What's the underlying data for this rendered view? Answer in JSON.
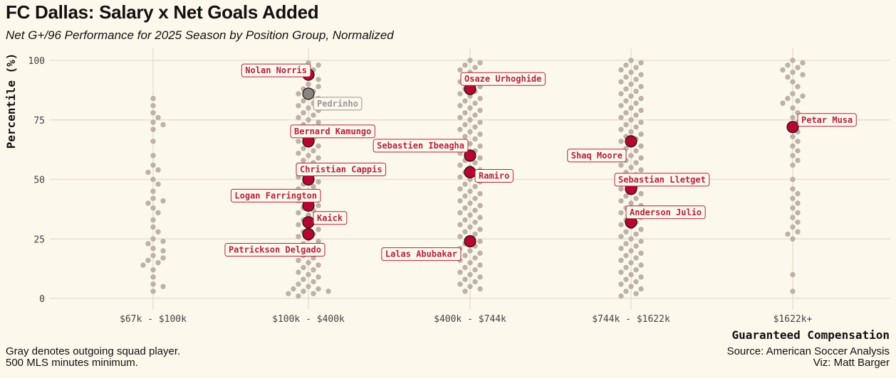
{
  "chart_data": {
    "type": "scatter",
    "title": "FC Dallas: Salary x Net Goals Added",
    "subtitle": "Net G+/96 Performance for 2025 Season by Position Group, Normalized",
    "xlabel": "Guaranteed Compensation",
    "ylabel": "Percentile (%)",
    "categories": [
      "$67k - $100k",
      "$100k - $400k",
      "$400k - $744k",
      "$744k - $1622k",
      "$1622k+"
    ],
    "ylim": [
      0,
      100
    ],
    "yticks": [
      0,
      25,
      50,
      75,
      100
    ],
    "grid": true,
    "league_points": [
      {
        "category": "$67k - $100k",
        "values": [
          84,
          81,
          78,
          76,
          74,
          73,
          71,
          66,
          60,
          56,
          54,
          53,
          50,
          48,
          45,
          42,
          41,
          40,
          38,
          36,
          33,
          30,
          28,
          25,
          24,
          23,
          21,
          20,
          18,
          17,
          16,
          15,
          14,
          12,
          9,
          6,
          5,
          3
        ]
      },
      {
        "category": "$100k - $400k",
        "values": [
          99,
          98,
          97,
          96,
          95,
          93,
          92,
          90,
          89,
          88,
          87,
          86,
          85,
          84,
          83,
          82,
          81,
          80,
          79,
          78,
          77,
          76,
          75,
          74,
          73,
          72,
          71,
          70,
          69,
          68,
          67,
          66,
          65,
          64,
          63,
          62,
          61,
          60,
          59,
          58,
          57,
          56,
          55,
          54,
          53,
          52,
          51,
          50,
          49,
          48,
          47,
          46,
          45,
          44,
          43,
          42,
          41,
          40,
          39,
          38,
          37,
          36,
          35,
          34,
          33,
          32,
          31,
          30,
          29,
          28,
          27,
          26,
          25,
          24,
          23,
          22,
          21,
          20,
          19,
          18,
          17,
          16,
          15,
          14,
          13,
          12,
          11,
          10,
          9,
          8,
          7,
          6,
          5,
          4,
          4,
          3,
          3,
          2,
          2,
          1
        ]
      },
      {
        "category": "$400k - $744k",
        "values": [
          100,
          99,
          98,
          97,
          96,
          95,
          94,
          93,
          92,
          91,
          90,
          89,
          88,
          87,
          86,
          85,
          84,
          83,
          82,
          81,
          80,
          79,
          78,
          77,
          76,
          75,
          74,
          73,
          72,
          71,
          70,
          69,
          68,
          67,
          66,
          65,
          64,
          63,
          62,
          61,
          60,
          59,
          58,
          57,
          56,
          55,
          54,
          53,
          52,
          51,
          50,
          49,
          48,
          47,
          46,
          45,
          44,
          43,
          42,
          41,
          40,
          39,
          38,
          37,
          36,
          35,
          34,
          33,
          32,
          31,
          30,
          29,
          28,
          27,
          26,
          25,
          24,
          23,
          22,
          21,
          20,
          19,
          18,
          17,
          16,
          15,
          14,
          13,
          12,
          11,
          10,
          9,
          8,
          7,
          6,
          5,
          4,
          3
        ]
      },
      {
        "category": "$744k - $1622k",
        "values": [
          100,
          99,
          98,
          97,
          96,
          95,
          94,
          93,
          92,
          91,
          90,
          89,
          88,
          87,
          86,
          85,
          84,
          83,
          82,
          81,
          80,
          79,
          78,
          77,
          76,
          75,
          74,
          73,
          72,
          71,
          70,
          69,
          68,
          67,
          66,
          65,
          64,
          63,
          62,
          61,
          60,
          59,
          58,
          57,
          56,
          55,
          54,
          53,
          52,
          51,
          50,
          49,
          48,
          47,
          46,
          45,
          44,
          43,
          42,
          41,
          40,
          39,
          38,
          37,
          36,
          35,
          34,
          33,
          32,
          31,
          30,
          29,
          28,
          27,
          26,
          25,
          24,
          23,
          22,
          21,
          20,
          19,
          18,
          17,
          16,
          15,
          14,
          13,
          12,
          11,
          10,
          9,
          8,
          7,
          6,
          5,
          4,
          3,
          2,
          1
        ]
      },
      {
        "category": "$1622k+",
        "values": [
          100,
          99,
          98,
          97,
          96,
          95,
          94,
          93,
          91,
          89,
          86,
          85,
          84,
          83,
          82,
          80,
          78,
          76,
          74,
          72,
          70,
          68,
          66,
          64,
          62,
          60,
          58,
          56,
          50,
          46,
          44,
          42,
          40,
          38,
          36,
          34,
          32,
          30,
          28,
          27,
          25,
          10,
          3
        ]
      }
    ],
    "highlighted_players": [
      {
        "name": "Nolan Norris",
        "category": "$100k - $400k",
        "value": 94,
        "outgoing": false
      },
      {
        "name": "Pedrinho",
        "category": "$100k - $400k",
        "value": 86,
        "outgoing": true
      },
      {
        "name": "Bernard Kamungo",
        "category": "$100k - $400k",
        "value": 66,
        "outgoing": false
      },
      {
        "name": "Christian Cappis",
        "category": "$100k - $400k",
        "value": 50,
        "outgoing": false
      },
      {
        "name": "Logan Farrington",
        "category": "$100k - $400k",
        "value": 39,
        "outgoing": false
      },
      {
        "name": "Kaick",
        "category": "$100k - $400k",
        "value": 32,
        "outgoing": false
      },
      {
        "name": "Patrickson Delgado",
        "category": "$100k - $400k",
        "value": 27,
        "outgoing": false
      },
      {
        "name": "Osaze Urhoghide",
        "category": "$400k - $744k",
        "value": 88,
        "outgoing": false
      },
      {
        "name": "Sebastien Ibeagha",
        "category": "$400k - $744k",
        "value": 60,
        "outgoing": false
      },
      {
        "name": "Ramiro",
        "category": "$400k - $744k",
        "value": 53,
        "outgoing": false
      },
      {
        "name": "Lalas Abubakar",
        "category": "$400k - $744k",
        "value": 24,
        "outgoing": false
      },
      {
        "name": "Shaq Moore",
        "category": "$744k - $1622k",
        "value": 66,
        "outgoing": false
      },
      {
        "name": "Sebastian Lletget",
        "category": "$744k - $1622k",
        "value": 46,
        "outgoing": false
      },
      {
        "name": "Anderson Julio",
        "category": "$744k - $1622k",
        "value": 32,
        "outgoing": false
      },
      {
        "name": "Petar Musa",
        "category": "$1622k+",
        "value": 72,
        "outgoing": false
      }
    ],
    "colors": {
      "background": "#fdf8ec",
      "grid": "#e8e1d2",
      "league_point": "#bcb2a8",
      "player": "#b4082e",
      "player_edge": "#2a0a10",
      "outgoing": "#8a8580",
      "label_text": "#b4233f",
      "outgoing_label": "#9a9590"
    }
  },
  "footer": {
    "note_line1": "Gray denotes outgoing squad player.",
    "note_line2": "500 MLS minutes minimum.",
    "source": "Source: American Soccer Analysis",
    "viz": "Viz: Matt Barger"
  }
}
